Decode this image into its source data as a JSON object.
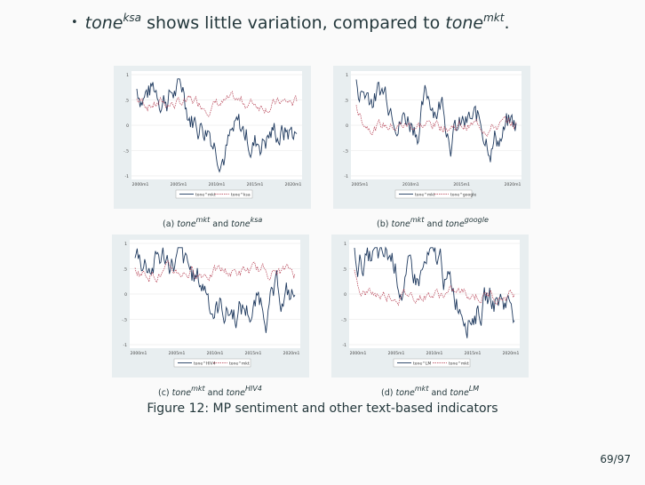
{
  "bullet": {
    "dot": "•",
    "subject_base": "tone",
    "subject_sup": "ksa",
    "middle": " shows little variation, compared to ",
    "object_base": "tone",
    "object_sup": "mkt",
    "end": "."
  },
  "colors": {
    "series_dark": "#1f3a5f",
    "series_red": "#b3384c",
    "panel_bg": "#e8eef0"
  },
  "panels": [
    {
      "label": "(a)",
      "a_base": "tone",
      "a_sup": "mkt",
      "and": "and",
      "b_base": "tone",
      "b_sup": "ksa",
      "y_ticks": [
        "1",
        ".5",
        "0",
        "-.5",
        "-1"
      ],
      "x_ticks": [
        "2000m1",
        "2005m1",
        "2010m1",
        "2015m1",
        "2020m1"
      ],
      "legend": [
        "tone^mkt",
        "tone^ksa"
      ]
    },
    {
      "label": "(b)",
      "a_base": "tone",
      "a_sup": "mkt",
      "and": "and",
      "b_base": "tone",
      "b_sup": "google",
      "y_ticks": [
        "1",
        ".5",
        "0",
        "-.5",
        "-1"
      ],
      "x_ticks": [
        "2005m1",
        "2010m1",
        "2015m1",
        "2020m1"
      ],
      "legend": [
        "tone^mkt",
        "tone^google"
      ]
    },
    {
      "label": "(c)",
      "a_base": "tone",
      "a_sup": "mkt",
      "and": "and",
      "b_base": "tone",
      "b_sup": "HIV4",
      "y_ticks": [
        "1",
        ".5",
        "0",
        "-.5",
        "-1"
      ],
      "x_ticks": [
        "2000m1",
        "2005m1",
        "2010m1",
        "2015m1",
        "2020m1"
      ],
      "legend": [
        "tone^HIV4",
        "tone^mkt"
      ]
    },
    {
      "label": "(d)",
      "a_base": "tone",
      "a_sup": "mkt",
      "and": "and",
      "b_base": "tone",
      "b_sup": "LM",
      "y_ticks": [
        "1",
        ".5",
        "0",
        "-.5",
        "-1"
      ],
      "x_ticks": [
        "2000m1",
        "2005m1",
        "2010m1",
        "2015m1",
        "2020m1"
      ],
      "legend": [
        "tone^LM",
        "tone^mkt"
      ]
    }
  ],
  "caption": {
    "label": "Figure 12:",
    "text": " MP sentiment and other text-based indicators"
  },
  "page_number": "69/97"
}
